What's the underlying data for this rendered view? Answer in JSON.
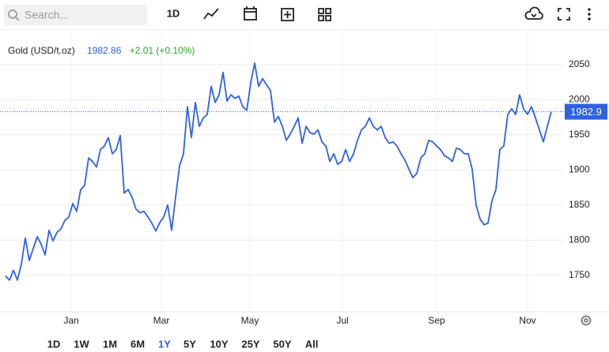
{
  "toolbar": {
    "search_placeholder": "Search...",
    "interval": "1D"
  },
  "chart_data": {
    "type": "line",
    "title": "Gold (USD/t.oz)",
    "price": 1982.86,
    "change": "+2.01 (+0.10%)",
    "price_tag": {
      "value": 1982.86,
      "label": "1982.9"
    },
    "color": "#2f62e0",
    "values": [
      1749,
      1743,
      1757,
      1743,
      1766,
      1803,
      1771,
      1788,
      1805,
      1794,
      1779,
      1814,
      1799,
      1811,
      1816,
      1828,
      1833,
      1852,
      1841,
      1872,
      1878,
      1917,
      1912,
      1904,
      1929,
      1934,
      1946,
      1923,
      1929,
      1949,
      1867,
      1872,
      1861,
      1844,
      1839,
      1841,
      1833,
      1824,
      1813,
      1825,
      1833,
      1850,
      1814,
      1861,
      1906,
      1923,
      1990,
      1946,
      1996,
      1962,
      1974,
      1979,
      2019,
      1996,
      2007,
      2039,
      1998,
      2007,
      2002,
      2005,
      1990,
      1985,
      2024,
      2052,
      2019,
      2030,
      2021,
      2013,
      1968,
      1976,
      1962,
      1942,
      1951,
      1962,
      1974,
      1938,
      1962,
      1953,
      1951,
      1957,
      1940,
      1934,
      1912,
      1923,
      1908,
      1912,
      1929,
      1912,
      1923,
      1942,
      1957,
      1962,
      1974,
      1962,
      1957,
      1962,
      1946,
      1938,
      1940,
      1934,
      1923,
      1914,
      1901,
      1889,
      1895,
      1917,
      1923,
      1942,
      1940,
      1934,
      1929,
      1920,
      1917,
      1912,
      1931,
      1929,
      1923,
      1923,
      1901,
      1850,
      1830,
      1822,
      1824,
      1856,
      1872,
      1929,
      1934,
      1979,
      1987,
      1979,
      2007,
      1987,
      1979,
      1990,
      1974,
      1957,
      1940,
      1962,
      1983
    ],
    "xlim": [
      -1.4,
      141
    ],
    "xticks": [
      {
        "value": 16.6,
        "label": "Jan"
      },
      {
        "value": 39.4,
        "label": "Mar"
      },
      {
        "value": 61.8,
        "label": "May"
      },
      {
        "value": 85.2,
        "label": "Jul"
      },
      {
        "value": 109,
        "label": "Sep"
      },
      {
        "value": 132,
        "label": "Nov"
      }
    ],
    "ylim": [
      1698,
      2097
    ],
    "yticks": [
      1750,
      1800,
      1850,
      1900,
      1950,
      2000,
      2050
    ],
    "grid": true
  },
  "range_buttons": [
    "1D",
    "1W",
    "1M",
    "6M",
    "1Y",
    "5Y",
    "10Y",
    "25Y",
    "50Y",
    "All"
  ],
  "active_range": 4
}
